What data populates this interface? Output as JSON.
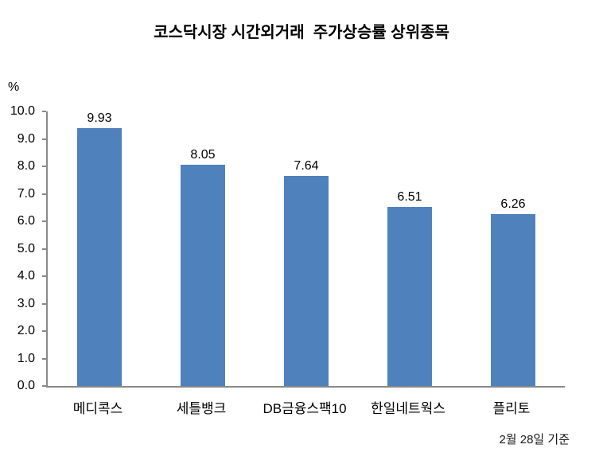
{
  "chart_data": {
    "type": "bar",
    "title": "코스닥시장 시간외거래  주가상승률 상위종목",
    "categories": [
      "메디콕스",
      "세틀뱅크",
      "DB금융스팩10",
      "한일네트웍스",
      "플리토"
    ],
    "values": [
      9.93,
      8.05,
      7.64,
      6.51,
      6.26
    ],
    "value_labels": [
      "9.93",
      "8.05",
      "7.64",
      "6.51",
      "6.26"
    ],
    "xlabel": "",
    "ylabel": "%",
    "ylim": [
      0,
      10
    ],
    "ytick_step": 1.0,
    "ytick_decimals": 1,
    "grid": "off",
    "legend": "none",
    "bar_color": "#4F81BD",
    "axis_color": "#898989",
    "footnote": "2월 28일 기준"
  }
}
